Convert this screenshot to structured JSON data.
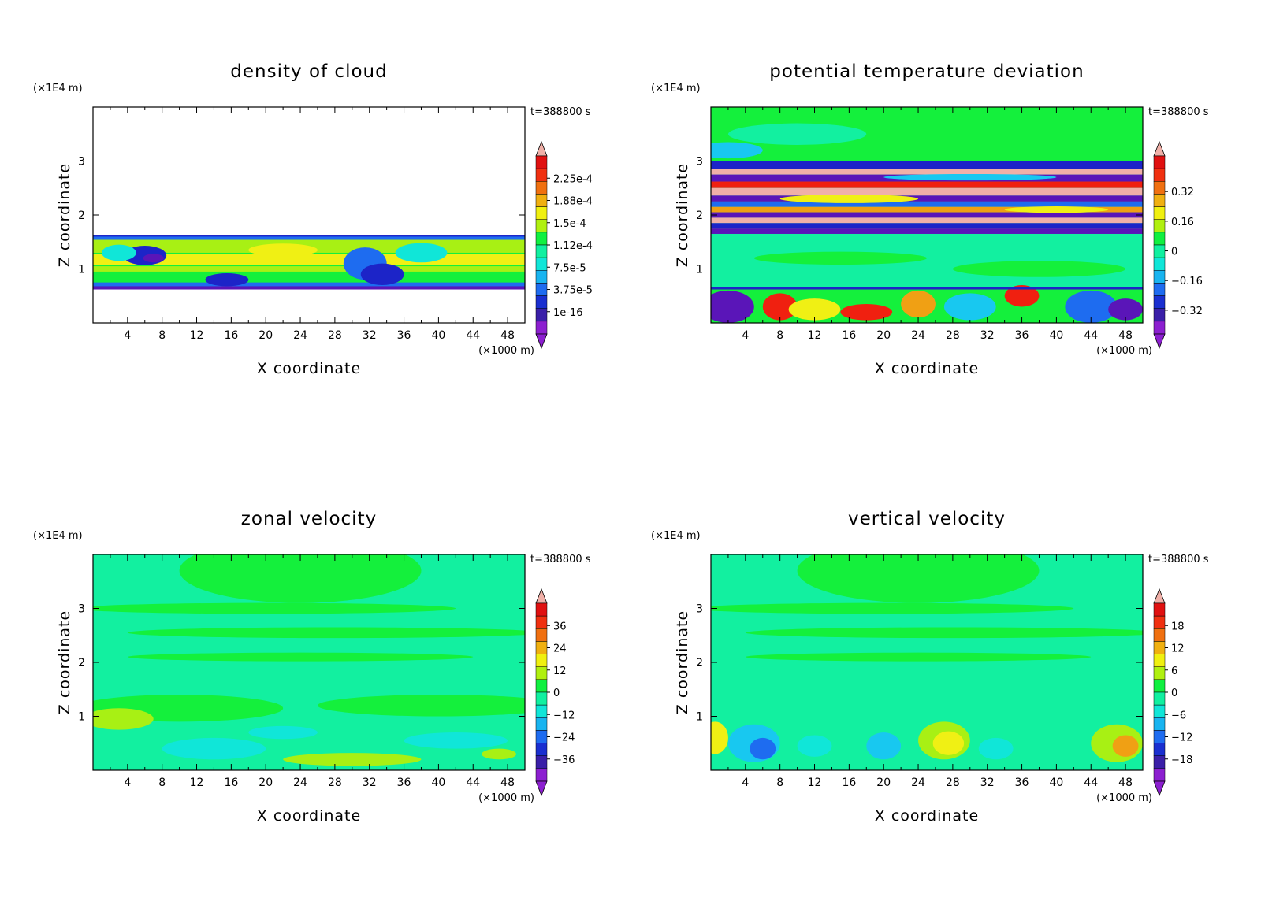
{
  "figure": {
    "x_unit": "(×1000 m)",
    "z_unit": "(×1E4 m)",
    "xlabel": "X coordinate",
    "ylabel": "Z coordinate",
    "time_label": "t=388800 s"
  },
  "chart_data": [
    {
      "type": "heatmap",
      "title": "density of cloud",
      "xlabel": "X coordinate",
      "ylabel": "Z coordinate",
      "x_unit": "(×1000 m)",
      "y_unit": "(×1E4 m)",
      "time": "t=388800 s",
      "xlim": [
        0,
        50
      ],
      "ylim": [
        0,
        4
      ],
      "x_ticks": [
        4,
        8,
        12,
        16,
        20,
        24,
        28,
        32,
        36,
        40,
        44,
        48
      ],
      "y_ticks": [
        1,
        2,
        3
      ],
      "colorbar_labels": [
        "2.25e-4",
        "1.88e-4",
        "1.5e-4",
        "1.12e-4",
        "7.5e-5",
        "3.75e-5",
        "1e-16"
      ],
      "colorbar_top_color": "#f0b0a8",
      "colorbar_bottom_color": "#8c1fd0",
      "field": "cloud_layer",
      "cloud_layer_z": [
        0.65,
        1.62
      ]
    },
    {
      "type": "heatmap",
      "title": "potential temperature deviation",
      "xlabel": "X coordinate",
      "ylabel": "Z coordinate",
      "x_unit": "(×1000 m)",
      "y_unit": "(×1E4 m)",
      "time": "t=388800 s",
      "xlim": [
        0,
        50
      ],
      "ylim": [
        0,
        4
      ],
      "x_ticks": [
        4,
        8,
        12,
        16,
        20,
        24,
        28,
        32,
        36,
        40,
        44,
        48
      ],
      "y_ticks": [
        1,
        2,
        3
      ],
      "colorbar_labels": [
        "0.32",
        "0.16",
        "0",
        "−0.16",
        "−0.32"
      ],
      "colorbar_top_color": "#f0b0a8",
      "colorbar_bottom_color": "#8c1fd0",
      "field": "banded_theta"
    },
    {
      "type": "heatmap",
      "title": "zonal velocity",
      "xlabel": "X coordinate",
      "ylabel": "Z coordinate",
      "x_unit": "(×1000 m)",
      "y_unit": "(×1E4 m)",
      "time": "t=388800 s",
      "xlim": [
        0,
        50
      ],
      "ylim": [
        0,
        4
      ],
      "x_ticks": [
        4,
        8,
        12,
        16,
        20,
        24,
        28,
        32,
        36,
        40,
        44,
        48
      ],
      "y_ticks": [
        1,
        2,
        3
      ],
      "colorbar_labels": [
        "36",
        "24",
        "12",
        "0",
        "−12",
        "−24",
        "−36"
      ],
      "colorbar_top_color": "#f0b0a8",
      "colorbar_bottom_color": "#8c1fd0",
      "field": "smooth_u"
    },
    {
      "type": "heatmap",
      "title": "vertical velocity",
      "xlabel": "X coordinate",
      "ylabel": "Z coordinate",
      "x_unit": "(×1000 m)",
      "y_unit": "(×1E4 m)",
      "time": "t=388800 s",
      "xlim": [
        0,
        50
      ],
      "ylim": [
        0,
        4
      ],
      "x_ticks": [
        4,
        8,
        12,
        16,
        20,
        24,
        28,
        32,
        36,
        40,
        44,
        48
      ],
      "y_ticks": [
        1,
        2,
        3
      ],
      "colorbar_labels": [
        "18",
        "12",
        "6",
        "0",
        "−6",
        "−12",
        "−18"
      ],
      "colorbar_top_color": "#f0b0a8",
      "colorbar_bottom_color": "#8c1fd0",
      "field": "smooth_w"
    }
  ]
}
